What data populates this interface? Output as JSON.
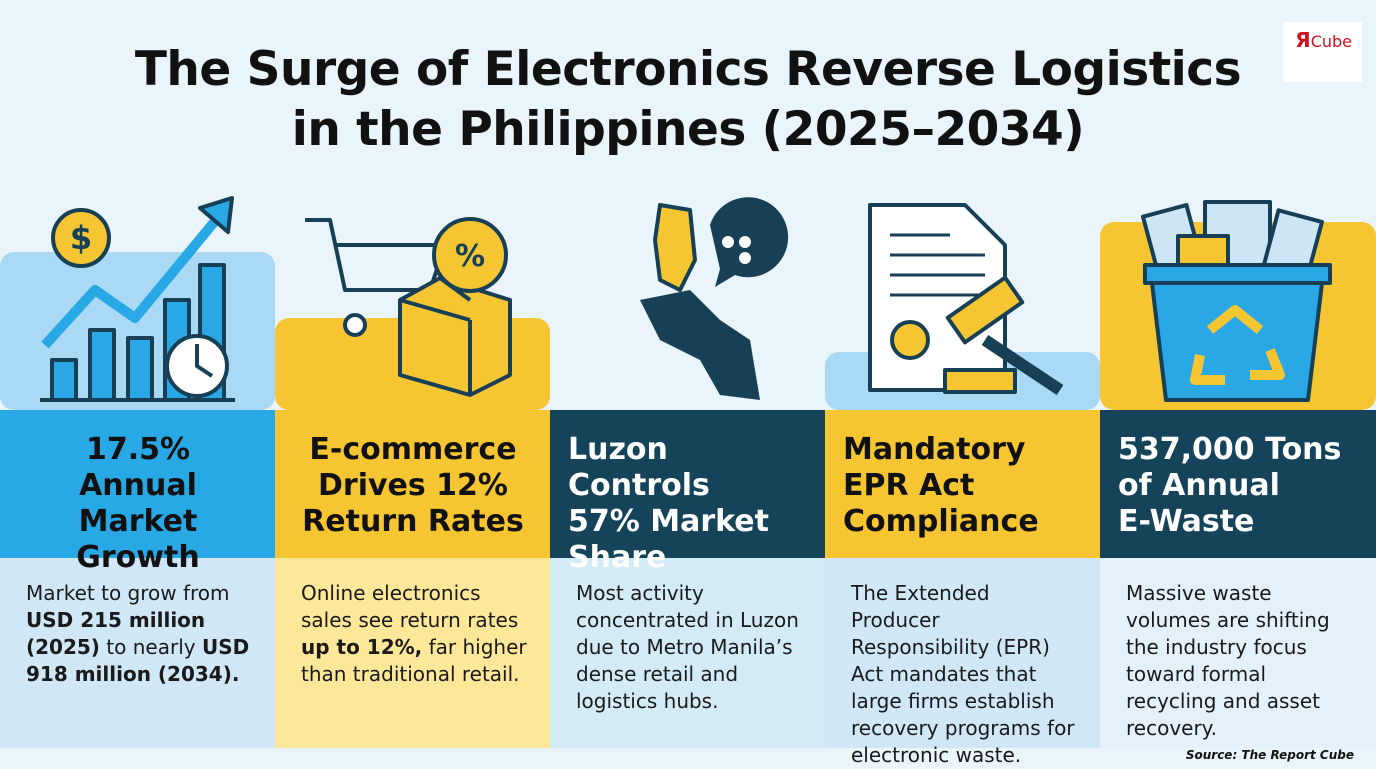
{
  "header": {
    "title": [
      "The Surge of Electronics Reverse Logistics",
      "in the Philippines (2025–2034)"
    ]
  },
  "logo": {
    "mark": "Я",
    "text": "Cube"
  },
  "columns": [
    {
      "headline": [
        "17.5%",
        "Annual Market",
        "Growth"
      ],
      "body": [
        {
          "text": "Market to grow from ",
          "bold": false
        },
        {
          "text": "USD 215 million (2025)",
          "bold": true
        },
        {
          "text": " to nearly ",
          "bold": false
        },
        {
          "text": "USD 918 million (2034).",
          "bold": true
        }
      ]
    },
    {
      "headline": [
        "E-commerce",
        "Drives 12%",
        "Return Rates"
      ],
      "body": [
        {
          "text": "Online electronics sales see return rates ",
          "bold": false
        },
        {
          "text": "up to 12%,",
          "bold": true
        },
        {
          "text": " far higher than traditional retail.",
          "bold": false
        }
      ]
    },
    {
      "headline": [
        "Luzon Controls",
        "57% Market",
        "Share"
      ],
      "body": [
        {
          "text": "Most activity concentrated in Luzon due to Metro Manila’s dense retail and logistics hubs.",
          "bold": false
        }
      ]
    },
    {
      "headline": [
        "Mandatory",
        "EPR Act",
        "Compliance"
      ],
      "body": [
        {
          "text": "The Extended Producer Responsibility (EPR) Act mandates that large firms establish recovery programs for electronic waste.",
          "bold": false
        }
      ]
    },
    {
      "headline": [
        "537,000 Tons",
        "of Annual",
        "E-Waste"
      ],
      "body": [
        {
          "text": "Massive waste volumes are shifting the industry focus toward formal recycling and asset recovery.",
          "bold": false
        }
      ]
    }
  ],
  "source": "Source: The Report Cube"
}
